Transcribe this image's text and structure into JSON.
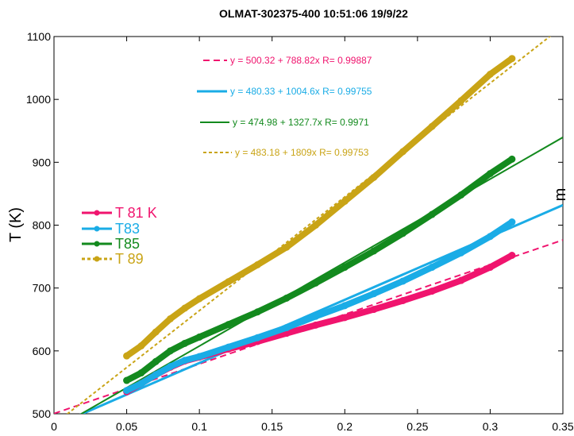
{
  "chart_data": {
    "type": "scatter",
    "title": "OLMAT-302375-400 10:51:06 19/9/22",
    "xlabel": "",
    "ylabel": "T (K)",
    "edge_label": "m",
    "xlim": [
      0,
      0.35
    ],
    "ylim": [
      500,
      1100
    ],
    "xticks": [
      "0",
      "0.05",
      "0.1",
      "0.15",
      "0.2",
      "0.25",
      "0.3",
      "0.35"
    ],
    "yticks": [
      "500",
      "600",
      "700",
      "800",
      "900",
      "1000",
      "1100"
    ],
    "grid": false,
    "legend_position": "left",
    "series": [
      {
        "name": "T 81 K",
        "color": "#f0146e",
        "dash": "none",
        "x": [
          0.05,
          0.06,
          0.07,
          0.08,
          0.09,
          0.1,
          0.12,
          0.14,
          0.16,
          0.18,
          0.2,
          0.22,
          0.24,
          0.26,
          0.28,
          0.3,
          0.315
        ],
        "y": [
          535,
          548,
          562,
          574,
          584,
          590,
          603,
          615,
          628,
          641,
          653,
          666,
          680,
          695,
          712,
          733,
          752
        ]
      },
      {
        "name": "T83",
        "color": "#1aace6",
        "dash": "none",
        "x": [
          0.05,
          0.06,
          0.07,
          0.08,
          0.09,
          0.1,
          0.12,
          0.14,
          0.16,
          0.18,
          0.2,
          0.22,
          0.24,
          0.26,
          0.28,
          0.3,
          0.315
        ],
        "y": [
          537,
          548,
          562,
          575,
          585,
          591,
          606,
          621,
          637,
          655,
          672,
          691,
          711,
          733,
          756,
          782,
          805
        ]
      },
      {
        "name": "T85",
        "color": "#138a1e",
        "dash": "none",
        "x": [
          0.05,
          0.06,
          0.07,
          0.08,
          0.09,
          0.1,
          0.12,
          0.14,
          0.16,
          0.18,
          0.2,
          0.22,
          0.24,
          0.26,
          0.28,
          0.3,
          0.315
        ],
        "y": [
          553,
          565,
          583,
          600,
          612,
          622,
          642,
          662,
          684,
          708,
          733,
          759,
          787,
          817,
          848,
          882,
          905
        ]
      },
      {
        "name": "T 89",
        "color": "#c9a416",
        "dash": "4,3",
        "x": [
          0.05,
          0.06,
          0.07,
          0.08,
          0.09,
          0.1,
          0.12,
          0.14,
          0.16,
          0.18,
          0.2,
          0.22,
          0.24,
          0.26,
          0.28,
          0.3,
          0.315
        ],
        "y": [
          592,
          608,
          630,
          651,
          668,
          683,
          710,
          737,
          765,
          800,
          838,
          876,
          917,
          957,
          998,
          1040,
          1065
        ]
      }
    ],
    "fits": [
      {
        "series": "T 81 K",
        "intercept": 500.32,
        "slope": 788.82,
        "label": "y = 500.32 + 788.82x   R= 0.99887",
        "x_range": [
          0.0,
          0.35
        ]
      },
      {
        "series": "T83",
        "intercept": 480.33,
        "slope": 1004.6,
        "label": "y = 480.33 + 1004.6x   R= 0.99755",
        "x_range": [
          0.0,
          0.35
        ]
      },
      {
        "series": "T85",
        "intercept": 474.98,
        "slope": 1327.7,
        "label": "y = 474.98 + 1327.7x   R= 0.9971",
        "x_range": [
          0.0,
          0.35
        ]
      },
      {
        "series": "T 89",
        "intercept": 483.18,
        "slope": 1809,
        "label": "y = 483.18 + 1809x   R= 0.99753",
        "x_range": [
          0.0,
          0.35
        ]
      }
    ]
  }
}
